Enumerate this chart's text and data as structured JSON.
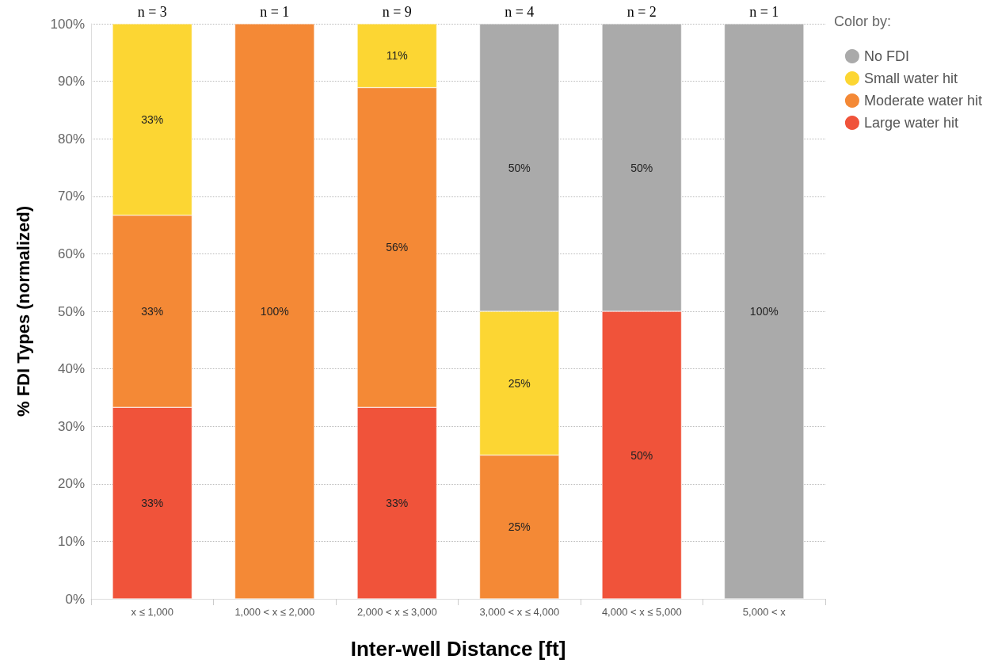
{
  "chart_data": {
    "type": "bar",
    "stacked": true,
    "xlabel": "Inter-well Distance [ft]",
    "ylabel": "% FDI Types (normalized)",
    "legend_title": "Color by:",
    "legend": "top right",
    "grid": "y",
    "categories": [
      "x ≤ 1,000",
      "1,000 < x ≤ 2,000",
      "2,000 < x ≤ 3,000",
      "3,000 < x ≤ 4,000",
      "4,000 < x ≤ 5,000",
      "5,000 < x"
    ],
    "ylim": [
      0,
      100
    ],
    "yticks": [
      {
        "value": 0,
        "label": "0%"
      },
      {
        "value": 10,
        "label": "10%"
      },
      {
        "value": 20,
        "label": "20%"
      },
      {
        "value": 30,
        "label": "30%"
      },
      {
        "value": 40,
        "label": "40%"
      },
      {
        "value": 50,
        "label": "50%"
      },
      {
        "value": 60,
        "label": "60%"
      },
      {
        "value": 70,
        "label": "70%"
      },
      {
        "value": 80,
        "label": "80%"
      },
      {
        "value": 90,
        "label": "90%"
      },
      {
        "value": 100,
        "label": "100%"
      }
    ],
    "series": [
      {
        "name": "Large water hit",
        "color": "#f0533a",
        "values": [
          33.3,
          null,
          33.3,
          null,
          50,
          null
        ],
        "value_labels": [
          "33%",
          null,
          "33%",
          null,
          "50%",
          null
        ]
      },
      {
        "name": "Moderate water hit",
        "color": "#f48936",
        "values": [
          33.4,
          100,
          55.6,
          25,
          null,
          null
        ],
        "value_labels": [
          "33%",
          "100%",
          "56%",
          "25%",
          null,
          null
        ]
      },
      {
        "name": "Small water hit",
        "color": "#fcd633",
        "values": [
          33.3,
          null,
          11.1,
          25,
          null,
          null
        ],
        "value_labels": [
          "33%",
          null,
          "11%",
          "25%",
          null,
          null
        ]
      },
      {
        "name": "No FDI",
        "color": "#aaaaaa",
        "values": [
          null,
          null,
          null,
          50,
          50,
          100
        ],
        "value_labels": [
          null,
          null,
          null,
          "50%",
          "50%",
          "100%"
        ]
      }
    ],
    "annotations": [
      {
        "text": "n = 3",
        "x": "x ≤ 1,000",
        "y": 100
      },
      {
        "text": "n = 1",
        "x": "1,000 < x ≤ 2,000",
        "y": 100
      },
      {
        "text": "n = 9",
        "x": "2,000 < x ≤ 3,000",
        "y": 100
      },
      {
        "text": "n = 4",
        "x": "3,000 < x ≤ 4,000",
        "y": 100
      },
      {
        "text": "n = 2",
        "x": "4,000 < x ≤ 5,000",
        "y": 100
      },
      {
        "text": "n = 1",
        "x": "5,000 < x",
        "y": 100
      }
    ]
  }
}
